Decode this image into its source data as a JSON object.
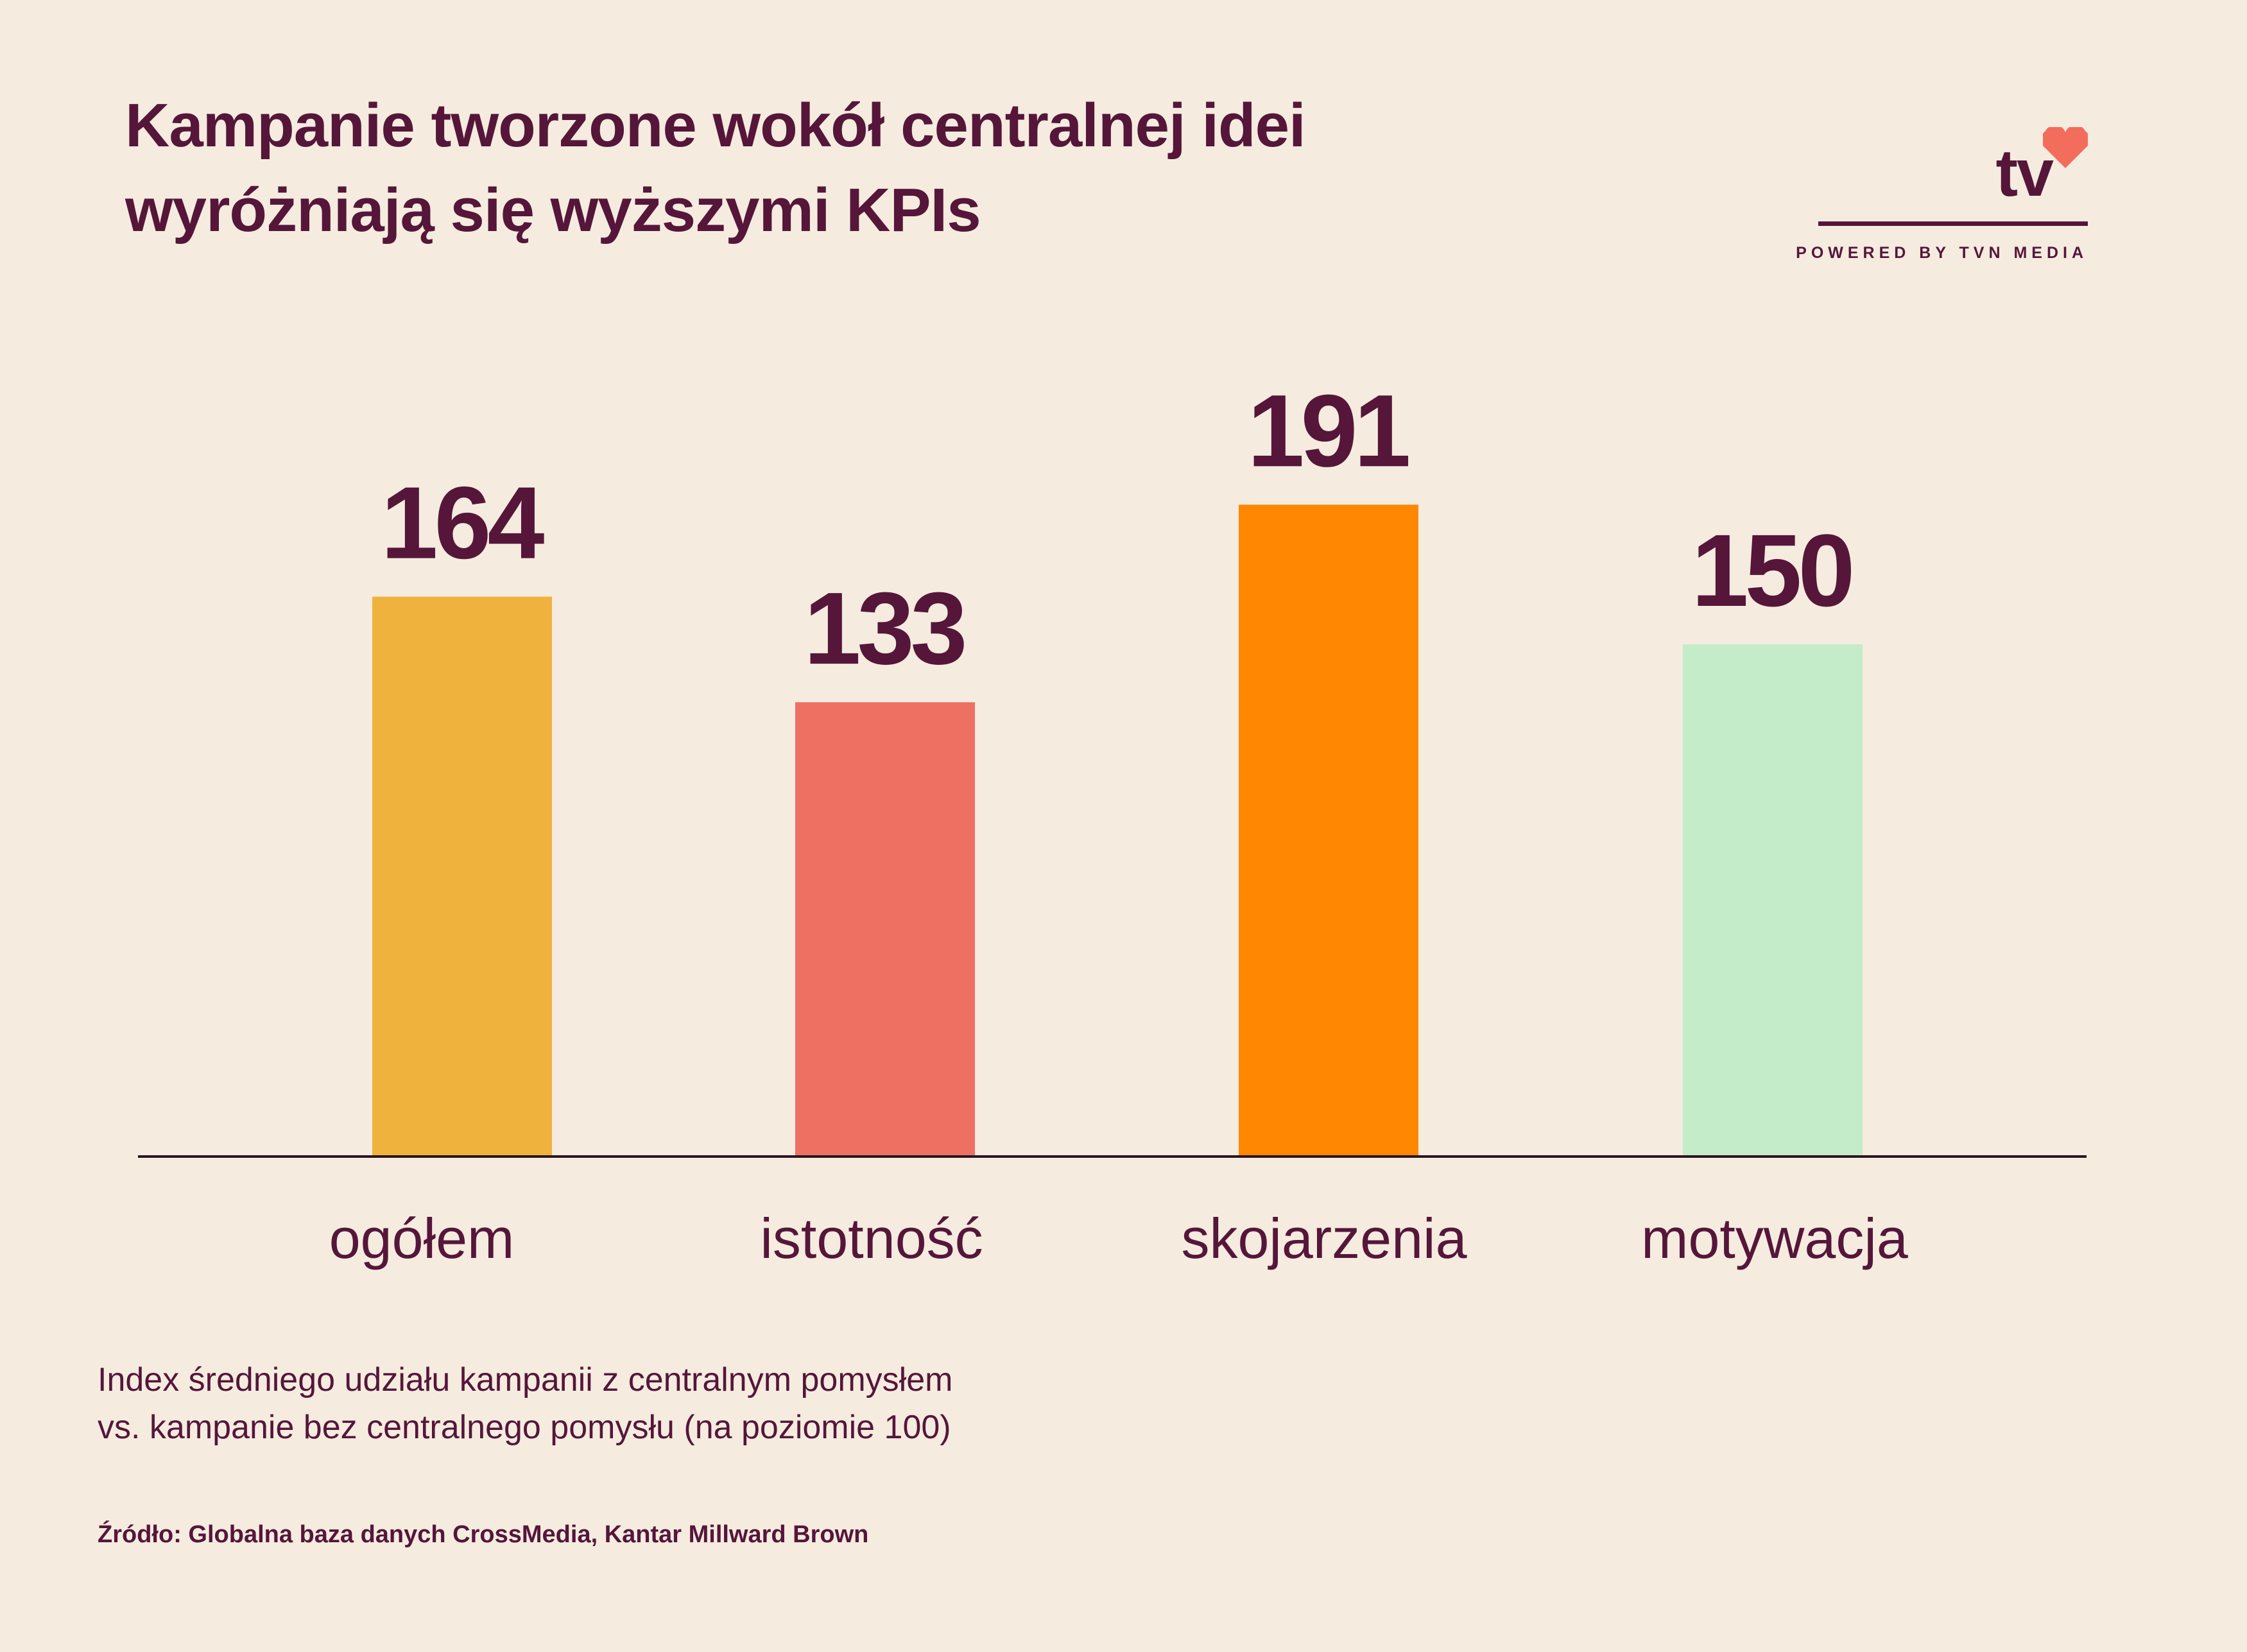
{
  "title_lines": [
    "Kampanie tworzone wokół centralnej idei",
    "wyróżniają się wyższymi KPIs"
  ],
  "logo": {
    "text": "tv",
    "tagline": "POWERED BY TVN MEDIA",
    "icon": "heart-icon",
    "accent": "#f26d5b"
  },
  "chart_data": {
    "type": "bar",
    "categories": [
      "ogółem",
      "istotność",
      "skojarzenia",
      "motywacja"
    ],
    "values": [
      164,
      133,
      191,
      150
    ],
    "colors": [
      "#efb23d",
      "#ed7063",
      "#ff8702",
      "#c4ecc8"
    ],
    "data_labels": [
      "164",
      "133",
      "191",
      "150"
    ],
    "ylim": [
      0,
      210
    ],
    "grid": false,
    "legend": "none"
  },
  "subtitle_lines": [
    "Index średniego udziału kampanii z centralnym pomysłem",
    "vs. kampanie bez centralnego pomysłu (na poziomie 100)"
  ],
  "source": "Źródło: Globalna baza danych CrossMedia, Kantar Millward Brown",
  "colors": {
    "background": "#f5ecdf",
    "text": "#55163a"
  }
}
